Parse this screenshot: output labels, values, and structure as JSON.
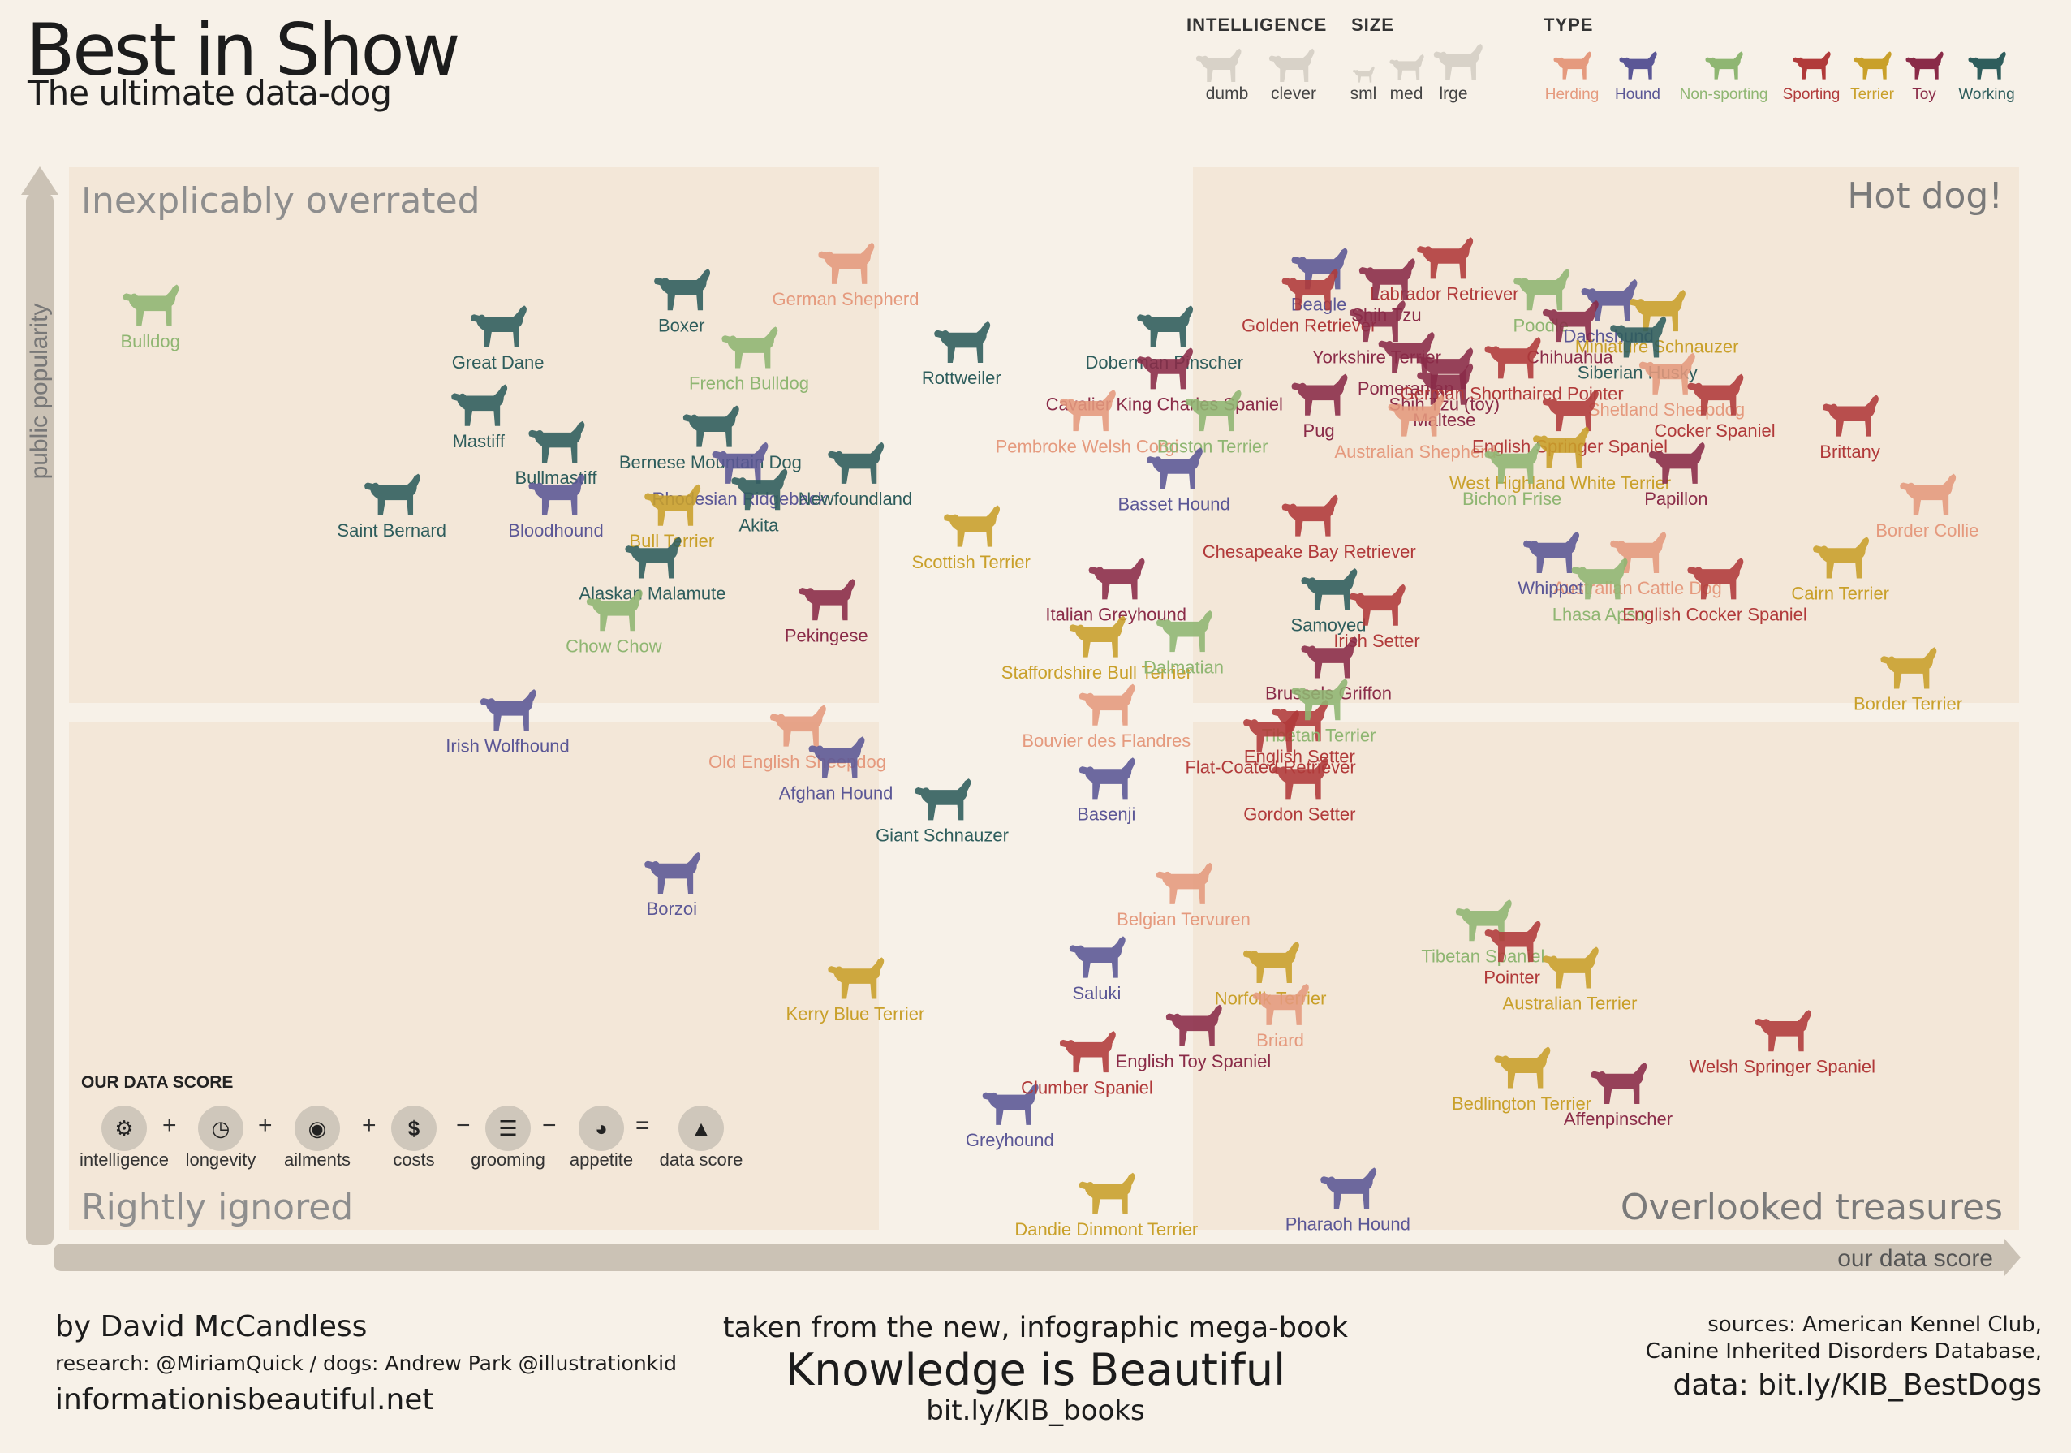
{
  "title": "Best in Show",
  "subtitle": "The ultimate data-dog",
  "legend": {
    "intelligence": {
      "heading": "INTELLIGENCE",
      "items": [
        "dumb",
        "clever"
      ]
    },
    "size": {
      "heading": "SIZE",
      "items": [
        "sml",
        "med",
        "lrge"
      ]
    },
    "type": {
      "heading": "TYPE",
      "items": [
        {
          "label": "Herding",
          "color": "#e59a7e"
        },
        {
          "label": "Hound",
          "color": "#5b5796"
        },
        {
          "label": "Non-sporting",
          "color": "#8fb672"
        },
        {
          "label": "Sporting",
          "color": "#b13a3a"
        },
        {
          "label": "Terrier",
          "color": "#c9a02a"
        },
        {
          "label": "Toy",
          "color": "#8a2b48"
        },
        {
          "label": "Working",
          "color": "#2e5d5c"
        }
      ]
    }
  },
  "score_formula": {
    "heading": "OUR DATA SCORE",
    "terms": [
      "intelligence",
      "longevity",
      "ailments",
      "costs",
      "grooming",
      "appetite",
      "data score"
    ],
    "operators": [
      "+",
      "+",
      "+",
      "−",
      "−",
      "="
    ]
  },
  "footer": {
    "author": "by David McCandless",
    "research": "research: @MiriamQuick / dogs: Andrew Park @illustrationkid",
    "site": "informationisbeautiful.net",
    "book_intro": "taken from the new, infographic mega-book",
    "book_title": "Knowledge is Beautiful",
    "book_link": "bit.ly/KIB_books",
    "sources_1": "sources: American Kennel Club,",
    "sources_2": "Canine Inherited Disorders Database,",
    "data_link": "data: bit.ly/KIB_BestDogs"
  },
  "chart_data": {
    "type": "scatter",
    "title": "Best in Show",
    "xlabel": "our data score",
    "ylabel": "public popularity",
    "xlim": [
      0,
      100
    ],
    "ylim": [
      0,
      100
    ],
    "grid": false,
    "quadrants": {
      "top_left": "Inexplicably overrated",
      "top_right": "Hot dog!",
      "bottom_left": "Rightly ignored",
      "bottom_right": "Overlooked treasures"
    },
    "points": [
      {
        "name": "Bulldog",
        "group": "Non-sporting",
        "x": 4.0,
        "y": 87.5
      },
      {
        "name": "Great Dane",
        "group": "Working",
        "x": 22.0,
        "y": 85.5
      },
      {
        "name": "Boxer",
        "group": "Working",
        "x": 31.5,
        "y": 89.0
      },
      {
        "name": "German Shepherd",
        "group": "Herding",
        "x": 40.0,
        "y": 91.5
      },
      {
        "name": "French Bulldog",
        "group": "Non-sporting",
        "x": 35.0,
        "y": 83.5
      },
      {
        "name": "Rottweiler",
        "group": "Working",
        "x": 46.0,
        "y": 84.0
      },
      {
        "name": "Doberman Pinscher",
        "group": "Working",
        "x": 56.5,
        "y": 85.5
      },
      {
        "name": "Cavalier King Charles Spaniel",
        "group": "Toy",
        "x": 56.5,
        "y": 81.5
      },
      {
        "name": "Pembroke Welsh Corgi",
        "group": "Herding",
        "x": 52.5,
        "y": 77.5
      },
      {
        "name": "Boston Terrier",
        "group": "Non-sporting",
        "x": 59.0,
        "y": 77.5
      },
      {
        "name": "Mastiff",
        "group": "Working",
        "x": 21.0,
        "y": 78.0
      },
      {
        "name": "Bullmastiff",
        "group": "Working",
        "x": 25.0,
        "y": 74.5
      },
      {
        "name": "Bernese Mountain Dog",
        "group": "Working",
        "x": 33.0,
        "y": 76.0
      },
      {
        "name": "Rhodesian Ridgeback",
        "group": "Hound",
        "x": 34.5,
        "y": 72.5
      },
      {
        "name": "Newfoundland",
        "group": "Working",
        "x": 40.5,
        "y": 72.5
      },
      {
        "name": "Bull Terrier",
        "group": "Terrier",
        "x": 31.0,
        "y": 68.5
      },
      {
        "name": "Akita",
        "group": "Working",
        "x": 35.5,
        "y": 70.0
      },
      {
        "name": "Saint Bernard",
        "group": "Working",
        "x": 16.5,
        "y": 69.5
      },
      {
        "name": "Bloodhound",
        "group": "Hound",
        "x": 25.0,
        "y": 69.5
      },
      {
        "name": "Alaskan Malamute",
        "group": "Working",
        "x": 30.0,
        "y": 63.5
      },
      {
        "name": "Chow Chow",
        "group": "Non-sporting",
        "x": 28.0,
        "y": 58.5
      },
      {
        "name": "Pekingese",
        "group": "Toy",
        "x": 39.0,
        "y": 59.5
      },
      {
        "name": "Scottish Terrier",
        "group": "Terrier",
        "x": 46.5,
        "y": 66.5
      },
      {
        "name": "Irish Wolfhound",
        "group": "Hound",
        "x": 22.5,
        "y": 49.0
      },
      {
        "name": "Old English Sheepdog",
        "group": "Herding",
        "x": 37.5,
        "y": 47.5
      },
      {
        "name": "Afghan Hound",
        "group": "Hound",
        "x": 39.5,
        "y": 44.5
      },
      {
        "name": "Giant Schnauzer",
        "group": "Working",
        "x": 45.0,
        "y": 40.5
      },
      {
        "name": "Borzoi",
        "group": "Hound",
        "x": 31.0,
        "y": 33.5
      },
      {
        "name": "Kerry Blue Terrier",
        "group": "Terrier",
        "x": 40.5,
        "y": 23.5
      },
      {
        "name": "Greyhound",
        "group": "Hound",
        "x": 48.5,
        "y": 11.5
      },
      {
        "name": "Beagle",
        "group": "Hound",
        "x": 64.5,
        "y": 91.0
      },
      {
        "name": "Labrador Retriever",
        "group": "Sporting",
        "x": 71.0,
        "y": 92.0
      },
      {
        "name": "Golden Retriever",
        "group": "Sporting",
        "x": 64.0,
        "y": 89.0
      },
      {
        "name": "Shih Tzu",
        "group": "Toy",
        "x": 68.0,
        "y": 90.0
      },
      {
        "name": "Poodle",
        "group": "Non-sporting",
        "x": 76.0,
        "y": 89.0
      },
      {
        "name": "Yorkshire Terrier",
        "group": "Toy",
        "x": 67.5,
        "y": 86.0
      },
      {
        "name": "Dachshund",
        "group": "Hound",
        "x": 79.5,
        "y": 88.0
      },
      {
        "name": "Chihuahua",
        "group": "Toy",
        "x": 77.5,
        "y": 86.0
      },
      {
        "name": "Miniature Schnauzer",
        "group": "Terrier",
        "x": 82.0,
        "y": 87.0
      },
      {
        "name": "Siberian Husky",
        "group": "Working",
        "x": 81.0,
        "y": 84.5
      },
      {
        "name": "Pomeranian",
        "group": "Toy",
        "x": 69.0,
        "y": 83.0
      },
      {
        "name": "Pug",
        "group": "Toy",
        "x": 64.5,
        "y": 79.0
      },
      {
        "name": "Shih Tzu (toy)",
        "group": "Toy",
        "x": 71.0,
        "y": 81.5
      },
      {
        "name": "Maltese",
        "group": "Toy",
        "x": 71.0,
        "y": 80.0
      },
      {
        "name": "German Shorthaired Pointer",
        "group": "Sporting",
        "x": 74.5,
        "y": 82.5
      },
      {
        "name": "Shetland Sheepdog",
        "group": "Herding",
        "x": 82.5,
        "y": 81.0
      },
      {
        "name": "Australian Shepherd",
        "group": "Herding",
        "x": 69.5,
        "y": 77.0
      },
      {
        "name": "English Springer Spaniel",
        "group": "Sporting",
        "x": 77.5,
        "y": 77.5
      },
      {
        "name": "Cocker Spaniel",
        "group": "Sporting",
        "x": 85.0,
        "y": 79.0
      },
      {
        "name": "West Highland White Terrier",
        "group": "Terrier",
        "x": 77.0,
        "y": 74.0
      },
      {
        "name": "Chesapeake Bay Retriever",
        "group": "Sporting",
        "x": 64.0,
        "y": 67.5
      },
      {
        "name": "Basset Hound",
        "group": "Hound",
        "x": 57.0,
        "y": 72.0
      },
      {
        "name": "Bichon Frise",
        "group": "Non-sporting",
        "x": 74.5,
        "y": 72.5
      },
      {
        "name": "Papillon",
        "group": "Toy",
        "x": 83.0,
        "y": 72.5
      },
      {
        "name": "Brittany",
        "group": "Sporting",
        "x": 92.0,
        "y": 77.0
      },
      {
        "name": "Border Collie",
        "group": "Herding",
        "x": 96.0,
        "y": 69.5
      },
      {
        "name": "Australian Cattle Dog",
        "group": "Herding",
        "x": 81.0,
        "y": 64.0
      },
      {
        "name": "Whippet",
        "group": "Hound",
        "x": 76.5,
        "y": 64.0
      },
      {
        "name": "Lhasa Apso",
        "group": "Non-sporting",
        "x": 79.0,
        "y": 61.5
      },
      {
        "name": "English Cocker Spaniel",
        "group": "Sporting",
        "x": 85.0,
        "y": 61.5
      },
      {
        "name": "Cairn Terrier",
        "group": "Terrier",
        "x": 91.5,
        "y": 63.5
      },
      {
        "name": "Samoyed",
        "group": "Working",
        "x": 65.0,
        "y": 60.5
      },
      {
        "name": "Irish Setter",
        "group": "Sporting",
        "x": 67.5,
        "y": 59.0
      },
      {
        "name": "Italian Greyhound",
        "group": "Toy",
        "x": 54.0,
        "y": 61.5
      },
      {
        "name": "Staffordshire Bull Terrier",
        "group": "Terrier",
        "x": 53.0,
        "y": 56.0
      },
      {
        "name": "Dalmatian",
        "group": "Non-sporting",
        "x": 57.5,
        "y": 56.5
      },
      {
        "name": "Brussels Griffon",
        "group": "Toy",
        "x": 65.0,
        "y": 54.0
      },
      {
        "name": "Bouvier des Flandres",
        "group": "Herding",
        "x": 53.5,
        "y": 49.5
      },
      {
        "name": "English Setter",
        "group": "Sporting",
        "x": 63.5,
        "y": 48.0
      },
      {
        "name": "Tibetan Terrier",
        "group": "Non-sporting",
        "x": 64.5,
        "y": 50.0
      },
      {
        "name": "Flat-Coated Retriever",
        "group": "Sporting",
        "x": 62.0,
        "y": 47.0
      },
      {
        "name": "Basenji",
        "group": "Hound",
        "x": 53.5,
        "y": 42.5
      },
      {
        "name": "Gordon Setter",
        "group": "Sporting",
        "x": 63.5,
        "y": 42.5
      },
      {
        "name": "Border Terrier",
        "group": "Terrier",
        "x": 95.0,
        "y": 53.0
      },
      {
        "name": "Belgian Tervuren",
        "group": "Herding",
        "x": 57.5,
        "y": 32.5
      },
      {
        "name": "Saluki",
        "group": "Hound",
        "x": 53.0,
        "y": 25.5
      },
      {
        "name": "Norfolk Terrier",
        "group": "Terrier",
        "x": 62.0,
        "y": 25.0
      },
      {
        "name": "Briard",
        "group": "Herding",
        "x": 62.5,
        "y": 21.0
      },
      {
        "name": "Tibetan Spaniel",
        "group": "Non-sporting",
        "x": 73.0,
        "y": 29.0
      },
      {
        "name": "Pointer",
        "group": "Sporting",
        "x": 74.5,
        "y": 27.0
      },
      {
        "name": "Australian Terrier",
        "group": "Terrier",
        "x": 77.5,
        "y": 24.5
      },
      {
        "name": "English Toy Spaniel",
        "group": "Toy",
        "x": 58.0,
        "y": 19.0
      },
      {
        "name": "Clumber Spaniel",
        "group": "Sporting",
        "x": 52.5,
        "y": 16.5
      },
      {
        "name": "Bedlington Terrier",
        "group": "Terrier",
        "x": 75.0,
        "y": 15.0
      },
      {
        "name": "Affenpinscher",
        "group": "Toy",
        "x": 80.0,
        "y": 13.5
      },
      {
        "name": "Welsh Springer Spaniel",
        "group": "Sporting",
        "x": 88.5,
        "y": 18.5
      },
      {
        "name": "Dandie Dinmont Terrier",
        "group": "Terrier",
        "x": 53.5,
        "y": 3.0
      },
      {
        "name": "Pharaoh Hound",
        "group": "Hound",
        "x": 66.0,
        "y": 3.5
      }
    ]
  }
}
